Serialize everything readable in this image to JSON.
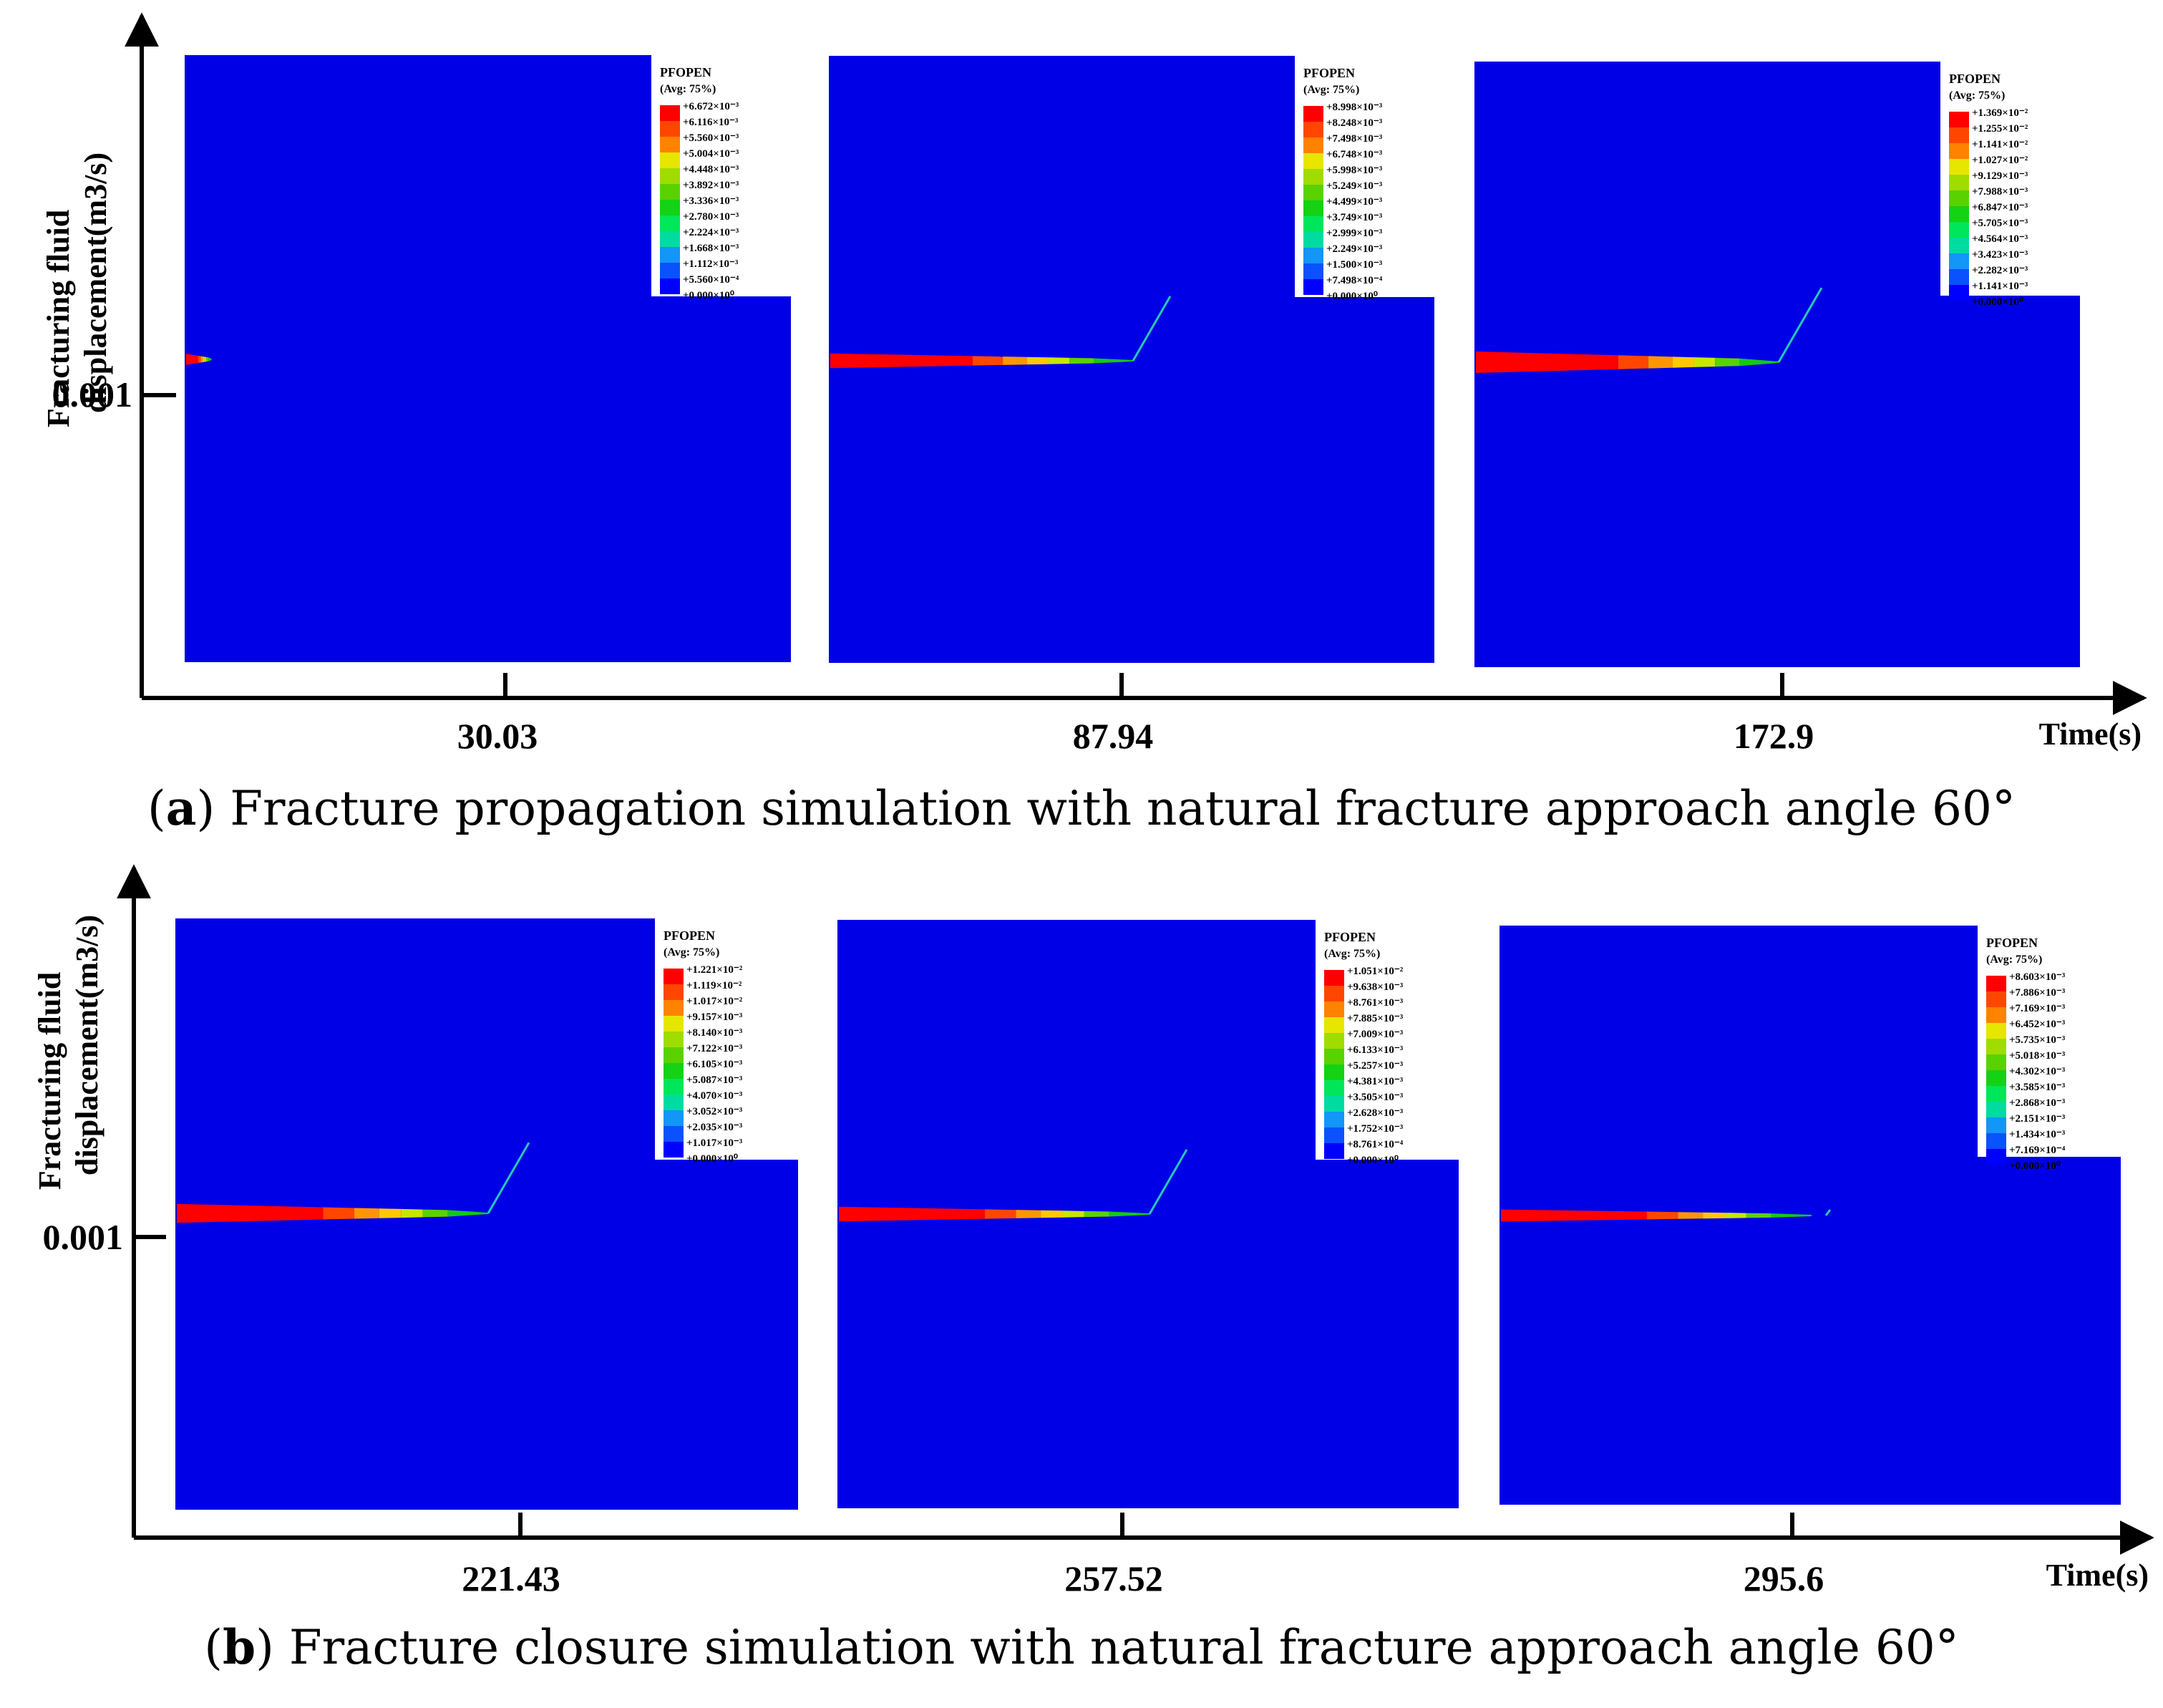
{
  "colors": {
    "model_blue": "#0000E6",
    "axis": "#000000",
    "legend_scale": [
      "#0000FF",
      "#0A52FF",
      "#1296F7",
      "#00C8E6",
      "#00DCA0",
      "#00E65A",
      "#14D214",
      "#5AD200",
      "#A0DC00",
      "#E6E600",
      "#FFB400",
      "#FF8200",
      "#FF4600",
      "#FF0000"
    ]
  },
  "caption_a": {
    "letter": "a",
    "text": " Fracture propagation simulation with natural fracture approach angle 60°"
  },
  "caption_b": {
    "letter": "b",
    "text": " Fracture closure simulation with natural fracture approach angle 60°"
  },
  "axes": {
    "y_label_line1": "Fracturing fluid",
    "y_label_line2": "displacement(m3/s)",
    "y_tick": "0.001",
    "x_label": "Time(s)"
  },
  "legend_common": {
    "title": "PFOPEN",
    "subtitle": "(Avg: 75%)"
  },
  "panels": [
    {
      "time": "30.03",
      "legend": [
        "+6.672×10⁻³",
        "+6.116×10⁻³",
        "+5.560×10⁻³",
        "+5.004×10⁻³",
        "+4.448×10⁻³",
        "+3.892×10⁻³",
        "+3.336×10⁻³",
        "+2.780×10⁻³",
        "+2.224×10⁻³",
        "+1.668×10⁻³",
        "+1.112×10⁻³",
        "+5.560×10⁻⁴",
        "+0.000×10⁰"
      ],
      "fracture_length": 0.15,
      "fracture_width": 0.4,
      "branch": false
    },
    {
      "time": "87.94",
      "legend": [
        "+8.998×10⁻³",
        "+8.248×10⁻³",
        "+7.498×10⁻³",
        "+6.748×10⁻³",
        "+5.998×10⁻³",
        "+5.249×10⁻³",
        "+4.499×10⁻³",
        "+3.749×10⁻³",
        "+2.999×10⁻³",
        "+2.249×10⁻³",
        "+1.500×10⁻³",
        "+7.498×10⁻⁴",
        "+0.000×10⁰"
      ],
      "fracture_length": 0.5,
      "fracture_width": 0.6,
      "branch": true
    },
    {
      "time": "172.9",
      "legend": [
        "+1.369×10⁻²",
        "+1.255×10⁻²",
        "+1.141×10⁻²",
        "+1.027×10⁻²",
        "+9.129×10⁻³",
        "+7.988×10⁻³",
        "+6.847×10⁻³",
        "+5.705×10⁻³",
        "+4.564×10⁻³",
        "+3.423×10⁻³",
        "+2.282×10⁻³",
        "+1.141×10⁻³",
        "+0.000×10⁰"
      ],
      "fracture_length": 0.5,
      "fracture_width": 1.0,
      "branch": true
    },
    {
      "time": "221.43",
      "legend": [
        "+1.221×10⁻²",
        "+1.119×10⁻²",
        "+1.017×10⁻²",
        "+9.157×10⁻³",
        "+8.140×10⁻³",
        "+7.122×10⁻³",
        "+6.105×10⁻³",
        "+5.087×10⁻³",
        "+4.070×10⁻³",
        "+3.052×10⁻³",
        "+2.035×10⁻³",
        "+1.017×10⁻³",
        "+0.000×10⁰"
      ],
      "fracture_length": 0.5,
      "fracture_width": 0.85,
      "branch": true
    },
    {
      "time": "257.52",
      "legend": [
        "+1.051×10⁻²",
        "+9.638×10⁻³",
        "+8.761×10⁻³",
        "+7.885×10⁻³",
        "+7.009×10⁻³",
        "+6.133×10⁻³",
        "+5.257×10⁻³",
        "+4.381×10⁻³",
        "+3.505×10⁻³",
        "+2.628×10⁻³",
        "+1.752×10⁻³",
        "+8.761×10⁻⁴",
        "+0.000×10⁰"
      ],
      "fracture_length": 0.5,
      "fracture_width": 0.6,
      "branch": true
    },
    {
      "time": "295.6",
      "legend": [
        "+8.603×10⁻³",
        "+7.886×10⁻³",
        "+7.169×10⁻³",
        "+6.452×10⁻³",
        "+5.735×10⁻³",
        "+5.018×10⁻³",
        "+4.302×10⁻³",
        "+3.585×10⁻³",
        "+2.868×10⁻³",
        "+2.151×10⁻³",
        "+1.434×10⁻³",
        "+7.169×10⁻⁴",
        "+0.000×10⁰"
      ],
      "fracture_length": 0.5,
      "fracture_width": 0.45,
      "branch": false
    }
  ]
}
